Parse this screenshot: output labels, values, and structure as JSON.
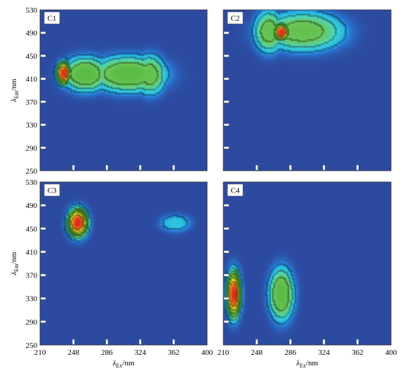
{
  "chart_data": [
    {
      "type": "heatmap",
      "panel": "C1",
      "xlim": [
        210,
        400
      ],
      "ylim": [
        250,
        530
      ],
      "x_ticks": [],
      "y_ticks": [
        250,
        290,
        330,
        370,
        410,
        450,
        490,
        530
      ],
      "xlabel": "",
      "ylabel": "λEm/nm",
      "peaks": [
        {
          "ex": 237,
          "em": 420,
          "intensity": 1.0,
          "sx": 7,
          "sy": 17
        },
        {
          "ex": 262,
          "em": 418,
          "intensity": 0.55,
          "sx": 22,
          "sy": 25
        },
        {
          "ex": 310,
          "em": 418,
          "intensity": 0.55,
          "sx": 35,
          "sy": 26
        },
        {
          "ex": 335,
          "em": 417,
          "intensity": 0.5,
          "sx": 15,
          "sy": 28
        }
      ]
    },
    {
      "type": "heatmap",
      "panel": "C2",
      "xlim": [
        210,
        400
      ],
      "ylim": [
        250,
        530
      ],
      "x_ticks": [],
      "y_ticks": [],
      "xlabel": "",
      "ylabel": "",
      "peaks": [
        {
          "ex": 276,
          "em": 491,
          "intensity": 1.0,
          "sx": 8,
          "sy": 13
        },
        {
          "ex": 300,
          "em": 492,
          "intensity": 0.5,
          "sx": 38,
          "sy": 28
        },
        {
          "ex": 262,
          "em": 492,
          "intensity": 0.5,
          "sx": 14,
          "sy": 30
        }
      ]
    },
    {
      "type": "heatmap",
      "panel": "C3",
      "xlim": [
        210,
        400
      ],
      "ylim": [
        250,
        530
      ],
      "x_ticks": [
        210,
        248,
        286,
        324,
        362,
        400
      ],
      "y_ticks": [
        250,
        290,
        330,
        370,
        410,
        450,
        490,
        530
      ],
      "xlabel": "λEx/nm",
      "ylabel": "λEm/nm",
      "peaks": [
        {
          "ex": 253,
          "em": 460,
          "intensity": 1.0,
          "sx": 10,
          "sy": 21
        },
        {
          "ex": 364,
          "em": 459,
          "intensity": 0.24,
          "sx": 14,
          "sy": 12
        }
      ]
    },
    {
      "type": "heatmap",
      "panel": "C4",
      "xlim": [
        210,
        400
      ],
      "ylim": [
        250,
        530
      ],
      "x_ticks": [
        210,
        248,
        286,
        324,
        362,
        400
      ],
      "y_ticks": [],
      "xlabel": "λEx/nm",
      "ylabel": "",
      "peaks": [
        {
          "ex": 222,
          "em": 337,
          "intensity": 1.0,
          "sx": 7,
          "sy": 34
        },
        {
          "ex": 276,
          "em": 337,
          "intensity": 0.55,
          "sx": 12,
          "sy": 38
        }
      ]
    }
  ]
}
